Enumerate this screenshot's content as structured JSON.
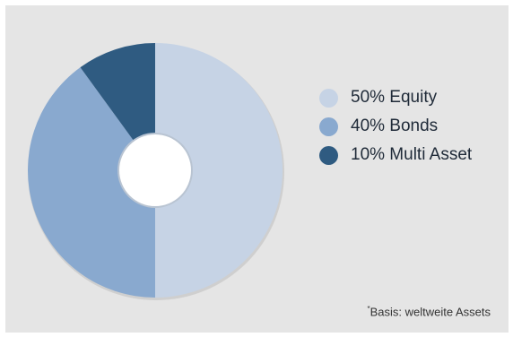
{
  "chart_data": {
    "type": "pie",
    "hole": true,
    "slices": [
      {
        "label": "50% Equity",
        "value": 50,
        "color": "#c6d3e5"
      },
      {
        "label": "40% Bonds",
        "value": 40,
        "color": "#89a9cf"
      },
      {
        "label": "10% Multi Asset",
        "value": 10,
        "color": "#2f5b81"
      }
    ],
    "legend_placement": "right",
    "footnote": {
      "marker": "*",
      "text": "Basis: weltweite Assets"
    }
  }
}
